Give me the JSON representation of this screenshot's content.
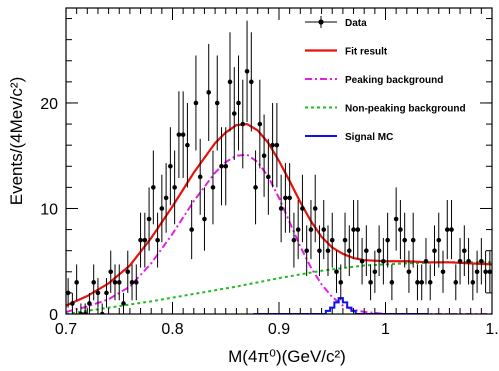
{
  "chart_data": {
    "type": "scatter",
    "xlabel": "M(4π⁰)(GeV/c²)",
    "ylabel": "Events/(4Mev/c²)",
    "xlim": [
      0.7,
      1.1
    ],
    "ylim": [
      0,
      29
    ],
    "x_ticks": [
      0.7,
      0.8,
      0.9,
      1.0,
      1.1
    ],
    "x_tick_labels": [
      "0.7",
      "0.8",
      "0.9",
      "1",
      "1."
    ],
    "y_ticks": [
      0,
      10,
      20
    ],
    "y_tick_labels": [
      "0",
      "10",
      "20"
    ],
    "grid": false,
    "legend_position": "top-right",
    "colors": {
      "data": "#000000",
      "fit": "#e8120c",
      "peaking": "#e51ee5",
      "nonpeaking": "#22bb22",
      "signal": "#1010ee"
    },
    "legend": [
      {
        "key": "data",
        "label": "Data"
      },
      {
        "key": "fit",
        "label": "Fit result"
      },
      {
        "key": "peaking",
        "label": "Peaking background"
      },
      {
        "key": "nonpeaking",
        "label": "Non-peaking background"
      },
      {
        "key": "signal",
        "label": "Signal MC"
      }
    ],
    "series": [
      {
        "name": "Data",
        "x": [
          0.702,
          0.706,
          0.71,
          0.714,
          0.718,
          0.722,
          0.726,
          0.73,
          0.734,
          0.738,
          0.742,
          0.746,
          0.75,
          0.754,
          0.758,
          0.762,
          0.766,
          0.77,
          0.774,
          0.778,
          0.782,
          0.786,
          0.79,
          0.794,
          0.798,
          0.802,
          0.806,
          0.81,
          0.814,
          0.818,
          0.822,
          0.826,
          0.83,
          0.834,
          0.838,
          0.842,
          0.846,
          0.85,
          0.854,
          0.858,
          0.862,
          0.866,
          0.87,
          0.874,
          0.878,
          0.882,
          0.886,
          0.89,
          0.894,
          0.898,
          0.902,
          0.906,
          0.91,
          0.914,
          0.918,
          0.922,
          0.926,
          0.93,
          0.934,
          0.938,
          0.942,
          0.946,
          0.95,
          0.954,
          0.958,
          0.962,
          0.966,
          0.97,
          0.974,
          0.978,
          0.982,
          0.986,
          0.99,
          0.994,
          0.998,
          1.002,
          1.006,
          1.01,
          1.014,
          1.018,
          1.022,
          1.026,
          1.03,
          1.034,
          1.038,
          1.042,
          1.046,
          1.05,
          1.054,
          1.058,
          1.062,
          1.066,
          1.07,
          1.074,
          1.078,
          1.082,
          1.086,
          1.09,
          1.094,
          1.098
        ],
        "y": [
          2,
          1,
          3,
          0,
          0,
          1,
          3,
          2,
          0,
          2,
          4,
          3,
          3,
          1,
          4,
          3,
          3,
          7,
          7,
          9,
          12,
          7,
          10,
          11,
          14,
          12,
          17,
          17,
          16,
          8,
          20,
          13,
          9,
          21,
          12,
          20,
          14,
          14,
          22,
          19,
          20,
          18,
          23,
          22,
          12,
          18,
          15,
          13,
          16,
          16,
          10,
          11,
          11,
          7,
          8,
          10,
          6,
          8,
          10,
          6,
          8,
          6,
          7,
          4,
          3,
          7,
          6,
          8,
          8,
          5,
          6,
          3,
          4,
          6,
          5,
          7,
          3,
          9,
          8,
          7,
          4,
          7,
          3,
          3,
          5,
          3,
          6,
          7,
          4,
          8,
          8,
          3,
          5,
          6,
          5,
          3,
          4,
          5,
          4,
          4
        ],
        "y_err": [
          1.4,
          1.0,
          1.7,
          1.0,
          1.0,
          1.0,
          1.7,
          1.4,
          1.0,
          1.4,
          2.0,
          1.7,
          1.7,
          1.0,
          2.0,
          1.7,
          1.7,
          2.6,
          2.6,
          3.0,
          3.5,
          2.6,
          3.2,
          3.3,
          3.7,
          3.5,
          4.1,
          4.1,
          4.0,
          2.8,
          4.5,
          3.6,
          3.0,
          4.6,
          3.5,
          4.5,
          3.7,
          3.7,
          4.7,
          4.4,
          4.5,
          4.2,
          4.8,
          4.7,
          3.5,
          4.2,
          3.9,
          3.6,
          4.0,
          4.0,
          3.2,
          3.3,
          3.3,
          2.6,
          2.8,
          3.2,
          2.4,
          2.8,
          3.2,
          2.4,
          2.8,
          2.4,
          2.6,
          2.0,
          1.7,
          2.6,
          2.4,
          2.8,
          2.8,
          2.2,
          2.4,
          1.7,
          2.0,
          2.4,
          2.2,
          2.6,
          1.7,
          3.0,
          2.8,
          2.6,
          2.0,
          2.6,
          1.7,
          1.7,
          2.2,
          1.7,
          2.4,
          2.6,
          2.0,
          2.8,
          2.8,
          1.7,
          2.2,
          2.4,
          2.2,
          1.7,
          2.0,
          2.2,
          2.0,
          2.0
        ]
      },
      {
        "name": "Fit result",
        "x": [
          0.7,
          0.72,
          0.74,
          0.76,
          0.78,
          0.8,
          0.82,
          0.84,
          0.85,
          0.86,
          0.87,
          0.88,
          0.89,
          0.9,
          0.91,
          0.92,
          0.93,
          0.94,
          0.95,
          0.96,
          0.97,
          0.98,
          1.0,
          1.02,
          1.04,
          1.06,
          1.08,
          1.1
        ],
        "y": [
          0.8,
          1.7,
          2.9,
          4.6,
          7.2,
          10.2,
          13.4,
          16.2,
          17.2,
          17.9,
          18.0,
          17.4,
          16.2,
          14.5,
          12.6,
          10.6,
          8.8,
          7.3,
          6.3,
          5.7,
          5.3,
          5.1,
          5.0,
          5.0,
          4.9,
          4.9,
          4.8,
          4.7
        ]
      },
      {
        "name": "Peaking background",
        "x": [
          0.7,
          0.72,
          0.74,
          0.76,
          0.78,
          0.8,
          0.82,
          0.84,
          0.85,
          0.86,
          0.87,
          0.88,
          0.89,
          0.9,
          0.91,
          0.92,
          0.93,
          0.94,
          0.95,
          0.96,
          0.97,
          0.98,
          0.99,
          1.0,
          1.04,
          1.1
        ],
        "y": [
          0.2,
          0.7,
          1.4,
          2.6,
          4.8,
          7.6,
          10.7,
          13.4,
          14.4,
          15.0,
          15.1,
          14.4,
          13.0,
          11.0,
          8.7,
          6.4,
          4.4,
          2.8,
          1.6,
          0.8,
          0.4,
          0.2,
          0.1,
          0.0,
          0.0,
          0.0
        ]
      },
      {
        "name": "Non-peaking background",
        "x": [
          0.7,
          0.74,
          0.78,
          0.82,
          0.86,
          0.9,
          0.94,
          0.98,
          1.02,
          1.06,
          1.1
        ],
        "y": [
          0.0,
          0.6,
          1.2,
          1.9,
          2.6,
          3.4,
          4.1,
          4.6,
          4.8,
          4.9,
          4.9
        ]
      },
      {
        "name": "Signal MC",
        "x": [
          0.876,
          0.94,
          0.944,
          0.948,
          0.952,
          0.956,
          0.96,
          0.964,
          0.968,
          0.972,
          1.04
        ],
        "y": [
          0.0,
          0.0,
          0.3,
          0.6,
          1.1,
          1.5,
          1.1,
          0.6,
          0.3,
          0.0,
          0.0
        ]
      }
    ]
  }
}
